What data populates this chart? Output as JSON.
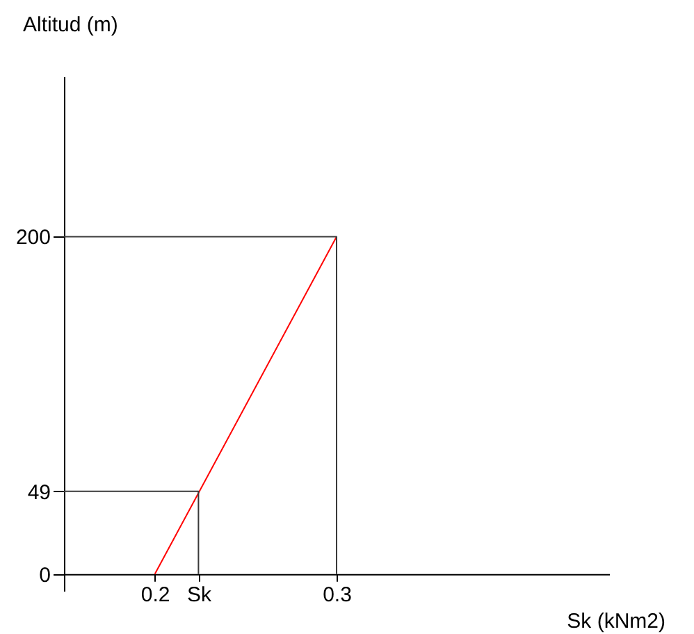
{
  "chart_data": {
    "type": "line",
    "xlabel": "Sk (kNm2)",
    "ylabel": "Altitud (m)",
    "xlim": [
      0.15,
      0.45
    ],
    "ylim": [
      -10,
      295
    ],
    "xticks": [
      {
        "value": 0.2,
        "label": "0.2"
      },
      {
        "value": 0.224,
        "label": "Sk"
      },
      {
        "value": 0.3,
        "label": "0.3"
      }
    ],
    "yticks": [
      0,
      49,
      200
    ],
    "grid": false,
    "marker": "none",
    "line_style": "solid",
    "series": [
      {
        "color": "#ff0000",
        "x": [
          0.2,
          0.3
        ],
        "values": [
          0,
          200
        ]
      },
      {
        "color": "#3a3a3a",
        "x": [
          0.15,
          0.3,
          0.3
        ],
        "values": [
          200,
          200,
          0
        ]
      },
      {
        "color": "#3a3a3a",
        "x": [
          0.15,
          0.224,
          0.224
        ],
        "values": [
          49,
          49,
          0
        ]
      }
    ]
  }
}
